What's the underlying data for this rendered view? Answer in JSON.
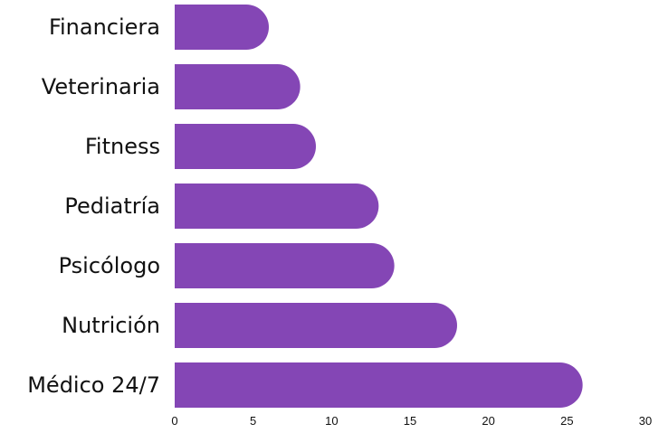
{
  "chart_data": {
    "type": "bar",
    "orientation": "horizontal",
    "categories": [
      "Financiera",
      "Veterinaria",
      "Fitness",
      "Pediatría",
      "Psicólogo",
      "Nutrición",
      "Médico 24/7"
    ],
    "values": [
      6,
      8,
      9,
      13,
      14,
      18,
      26
    ],
    "xlim": [
      0,
      30
    ],
    "xticks": [
      "0",
      "5",
      "10",
      "15",
      "20",
      "25",
      "30"
    ],
    "title": "",
    "xlabel": "",
    "ylabel": "",
    "grid": false,
    "legend": "none",
    "bar_color": "#8446b5",
    "bar_end_style": "rounded"
  }
}
